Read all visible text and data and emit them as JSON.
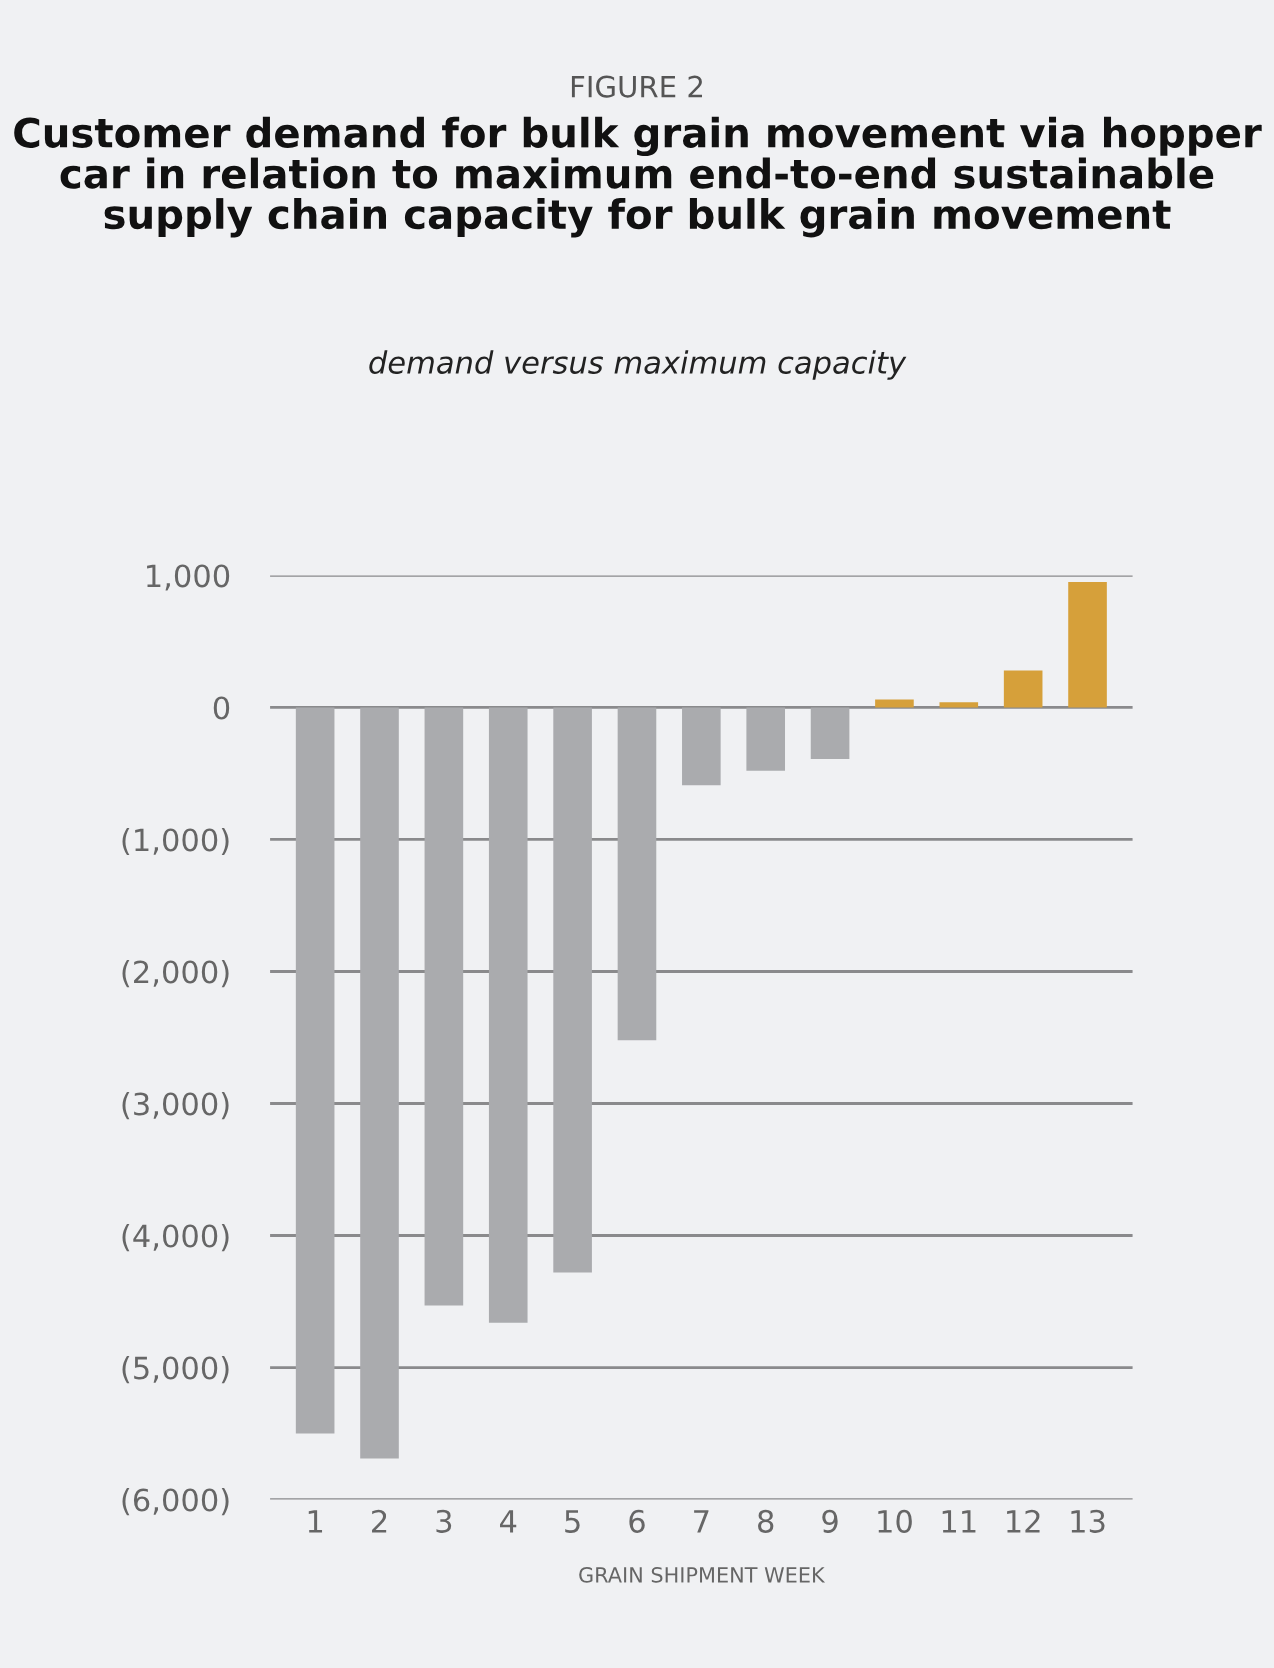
{
  "chart_data": {
    "type": "bar",
    "title": "Customer demand for bulk grain movement via hopper car in relation to maximum end-to-end sustainable supply chain capacity for bulk grain movement",
    "subtitle": "demand versus maximum capacity",
    "annotations": [
      "FIGURE 2"
    ],
    "xlabel": "GRAIN SHIPMENT WEEK",
    "categories": [
      "1",
      "2",
      "3",
      "4",
      "5",
      "6",
      "7",
      "8",
      "9",
      "10",
      "11",
      "12",
      "13"
    ],
    "values": [
      -5500,
      -5690,
      -4530,
      -4660,
      -4280,
      -2520,
      -590,
      -480,
      -390,
      60,
      40,
      280,
      950
    ],
    "colors": [
      "#aaabae",
      "#aaabae",
      "#aaabae",
      "#aaabae",
      "#aaabae",
      "#aaabae",
      "#aaabae",
      "#aaabae",
      "#aaabae",
      "#d6a03a",
      "#d6a03a",
      "#d6a03a",
      "#d6a03a"
    ],
    "ylim": [
      -6000,
      1000
    ],
    "yticks": [
      {
        "value": -6000,
        "label": "(6,000)"
      },
      {
        "value": -5000,
        "label": "(5,000)"
      },
      {
        "value": -4000,
        "label": "(4,000)"
      },
      {
        "value": -3000,
        "label": "(3,000)"
      },
      {
        "value": -2000,
        "label": "(2,000)"
      },
      {
        "value": -1000,
        "label": "(1,000)"
      },
      0,
      {
        "value": 1000,
        "label": "1,000"
      }
    ],
    "grid": "y",
    "legend": false
  }
}
